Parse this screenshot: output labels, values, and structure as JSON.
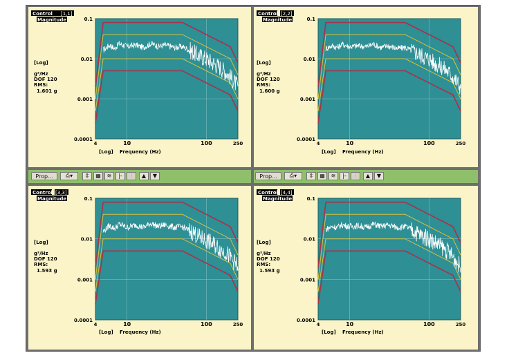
{
  "panels": [
    {
      "id": "1,1",
      "control_label": "Control",
      "id_label": "[1,1]",
      "magnitude_label": "Magnitude",
      "scale_label": "[Log]",
      "units_label": "g²/Hz",
      "dof_label": "DOF 120",
      "rms_label": "RMS:",
      "rms_value": "1.601 g",
      "x_scale_label": "[Log]",
      "xlabel": "Frequency (Hz)"
    },
    {
      "id": "2,2",
      "control_label": "Control",
      "id_label": "[2,2]",
      "magnitude_label": "Magnitude",
      "scale_label": "[Log]",
      "units_label": "g²/Hz",
      "dof_label": "DOF 120",
      "rms_label": "RMS:",
      "rms_value": "1.600 g",
      "x_scale_label": "[Log]",
      "xlabel": "Frequency (Hz)"
    },
    {
      "id": "3,3",
      "control_label": "Control",
      "id_label": "[3,3]",
      "magnitude_label": "Magnitude",
      "scale_label": "[Log]",
      "units_label": "g²/Hz",
      "dof_label": "DOF 120",
      "rms_label": "RMS:",
      "rms_value": "1.593 g",
      "x_scale_label": "[Log]",
      "xlabel": "Frequency (Hz)"
    },
    {
      "id": "4,4",
      "control_label": "Control",
      "id_label": "[4,4]",
      "magnitude_label": "Magnitude",
      "scale_label": "[Log]",
      "units_label": "g²/Hz",
      "dof_label": "DOF 120",
      "rms_label": "RMS:",
      "rms_value": "1.593 g",
      "x_scale_label": "[Log]",
      "xlabel": "Frequency (Hz)"
    }
  ],
  "toolbars": [
    {
      "prop_label": "Prop..."
    },
    {
      "prop_label": "Prop..."
    }
  ],
  "chart_data": [
    {
      "type": "line",
      "title": "",
      "xlabel": "Frequency (Hz)",
      "ylabel": "",
      "xscale": "log",
      "yscale": "log",
      "xlim": [
        4,
        250
      ],
      "ylim": [
        0.0001,
        0.1
      ],
      "xticks": [
        {
          "v": 4,
          "label": "4"
        },
        {
          "v": 10,
          "label": "10"
        },
        {
          "v": 100,
          "label": "100"
        },
        {
          "v": 250,
          "label": "250"
        }
      ],
      "yticks": [
        {
          "v": 0.1,
          "label": "0.1"
        },
        {
          "v": 0.01,
          "label": "0.01"
        },
        {
          "v": 0.001,
          "label": "0.001"
        },
        {
          "v": 0.0001,
          "label": "0.0001"
        }
      ],
      "grid": true,
      "series": [
        {
          "role": "abort-upper",
          "color": "#a8324b",
          "points": [
            [
              4,
              0.002
            ],
            [
              5,
              0.08
            ],
            [
              50,
              0.08
            ],
            [
              200,
              0.02
            ],
            [
              250,
              0.008
            ]
          ]
        },
        {
          "role": "alarm-upper",
          "color": "#d8c23a",
          "points": [
            [
              4,
              0.001
            ],
            [
              5,
              0.04
            ],
            [
              50,
              0.04
            ],
            [
              200,
              0.01
            ],
            [
              250,
              0.004
            ]
          ]
        },
        {
          "role": "alarm-lower",
          "color": "#d8c23a",
          "points": [
            [
              4,
              0.0005
            ],
            [
              5,
              0.01
            ],
            [
              50,
              0.01
            ],
            [
              200,
              0.0025
            ],
            [
              250,
              0.001
            ]
          ]
        },
        {
          "role": "abort-lower",
          "color": "#a8324b",
          "points": [
            [
              4,
              0.00025
            ],
            [
              5,
              0.005
            ],
            [
              50,
              0.005
            ],
            [
              200,
              0.00125
            ],
            [
              250,
              0.0005
            ]
          ]
        },
        {
          "role": "control",
          "color": "#ffffff",
          "points": [
            [
              5,
              0.016
            ],
            [
              6,
              0.022
            ],
            [
              7,
              0.018
            ],
            [
              8,
              0.024
            ],
            [
              10,
              0.02
            ],
            [
              13,
              0.022
            ],
            [
              16,
              0.019
            ],
            [
              20,
              0.024
            ],
            [
              25,
              0.02
            ],
            [
              30,
              0.022
            ],
            [
              40,
              0.019
            ],
            [
              50,
              0.02
            ],
            [
              60,
              0.017
            ],
            [
              70,
              0.014
            ],
            [
              80,
              0.012
            ],
            [
              100,
              0.01
            ],
            [
              120,
              0.008
            ],
            [
              150,
              0.006
            ],
            [
              180,
              0.0045
            ],
            [
              200,
              0.0035
            ],
            [
              220,
              0.0028
            ],
            [
              250,
              0.002
            ]
          ]
        }
      ]
    },
    {
      "type": "line",
      "title": "",
      "xlabel": "Frequency (Hz)",
      "ylabel": "",
      "xscale": "log",
      "yscale": "log",
      "xlim": [
        4,
        250
      ],
      "ylim": [
        0.0001,
        0.1
      ],
      "xticks": [
        {
          "v": 4,
          "label": "4"
        },
        {
          "v": 10,
          "label": "10"
        },
        {
          "v": 100,
          "label": "100"
        },
        {
          "v": 250,
          "label": "250"
        }
      ],
      "yticks": [
        {
          "v": 0.1,
          "label": "0.1"
        },
        {
          "v": 0.01,
          "label": "0.01"
        },
        {
          "v": 0.001,
          "label": "0.001"
        },
        {
          "v": 0.0001,
          "label": "0.0001"
        }
      ],
      "grid": true,
      "series": [
        {
          "role": "abort-upper",
          "color": "#a8324b",
          "points": [
            [
              4,
              0.002
            ],
            [
              5,
              0.08
            ],
            [
              50,
              0.08
            ],
            [
              200,
              0.02
            ],
            [
              250,
              0.008
            ]
          ]
        },
        {
          "role": "alarm-upper",
          "color": "#d8c23a",
          "points": [
            [
              4,
              0.001
            ],
            [
              5,
              0.04
            ],
            [
              50,
              0.04
            ],
            [
              200,
              0.01
            ],
            [
              250,
              0.004
            ]
          ]
        },
        {
          "role": "alarm-lower",
          "color": "#d8c23a",
          "points": [
            [
              4,
              0.0005
            ],
            [
              5,
              0.01
            ],
            [
              50,
              0.01
            ],
            [
              200,
              0.0025
            ],
            [
              250,
              0.001
            ]
          ]
        },
        {
          "role": "abort-lower",
          "color": "#a8324b",
          "points": [
            [
              4,
              0.00025
            ],
            [
              5,
              0.005
            ],
            [
              50,
              0.005
            ],
            [
              200,
              0.00125
            ],
            [
              250,
              0.0005
            ]
          ]
        },
        {
          "role": "control",
          "color": "#ffffff",
          "points": [
            [
              5,
              0.018
            ],
            [
              6,
              0.021
            ],
            [
              7,
              0.019
            ],
            [
              8,
              0.023
            ],
            [
              10,
              0.02
            ],
            [
              13,
              0.021
            ],
            [
              16,
              0.02
            ],
            [
              20,
              0.023
            ],
            [
              25,
              0.019
            ],
            [
              30,
              0.021
            ],
            [
              40,
              0.018
            ],
            [
              50,
              0.019
            ],
            [
              60,
              0.016
            ],
            [
              70,
              0.014
            ],
            [
              80,
              0.012
            ],
            [
              100,
              0.01
            ],
            [
              120,
              0.0075
            ],
            [
              150,
              0.006
            ],
            [
              180,
              0.0045
            ],
            [
              200,
              0.0035
            ],
            [
              220,
              0.0028
            ],
            [
              250,
              0.002
            ]
          ]
        }
      ]
    },
    {
      "type": "line",
      "title": "",
      "xlabel": "Frequency (Hz)",
      "ylabel": "",
      "xscale": "log",
      "yscale": "log",
      "xlim": [
        4,
        250
      ],
      "ylim": [
        0.0001,
        0.1
      ],
      "xticks": [
        {
          "v": 4,
          "label": "4"
        },
        {
          "v": 10,
          "label": "10"
        },
        {
          "v": 100,
          "label": "100"
        },
        {
          "v": 250,
          "label": "250"
        }
      ],
      "yticks": [
        {
          "v": 0.1,
          "label": "0.1"
        },
        {
          "v": 0.01,
          "label": "0.01"
        },
        {
          "v": 0.001,
          "label": "0.001"
        },
        {
          "v": 0.0001,
          "label": "0.0001"
        }
      ],
      "grid": true,
      "series": [
        {
          "role": "abort-upper",
          "color": "#a8324b",
          "points": [
            [
              4,
              0.002
            ],
            [
              5,
              0.08
            ],
            [
              50,
              0.08
            ],
            [
              200,
              0.02
            ],
            [
              250,
              0.008
            ]
          ]
        },
        {
          "role": "alarm-upper",
          "color": "#d8c23a",
          "points": [
            [
              4,
              0.001
            ],
            [
              5,
              0.04
            ],
            [
              50,
              0.04
            ],
            [
              200,
              0.01
            ],
            [
              250,
              0.004
            ]
          ]
        },
        {
          "role": "alarm-lower",
          "color": "#d8c23a",
          "points": [
            [
              4,
              0.0005
            ],
            [
              5,
              0.01
            ],
            [
              50,
              0.01
            ],
            [
              200,
              0.0025
            ],
            [
              250,
              0.001
            ]
          ]
        },
        {
          "role": "abort-lower",
          "color": "#a8324b",
          "points": [
            [
              4,
              0.00025
            ],
            [
              5,
              0.005
            ],
            [
              50,
              0.005
            ],
            [
              200,
              0.00125
            ],
            [
              250,
              0.0005
            ]
          ]
        },
        {
          "role": "control",
          "color": "#ffffff",
          "points": [
            [
              5,
              0.015
            ],
            [
              6,
              0.021
            ],
            [
              7,
              0.018
            ],
            [
              8,
              0.023
            ],
            [
              10,
              0.019
            ],
            [
              13,
              0.022
            ],
            [
              16,
              0.019
            ],
            [
              20,
              0.024
            ],
            [
              25,
              0.02
            ],
            [
              30,
              0.022
            ],
            [
              40,
              0.019
            ],
            [
              50,
              0.02
            ],
            [
              60,
              0.016
            ],
            [
              70,
              0.014
            ],
            [
              80,
              0.011
            ],
            [
              100,
              0.009
            ],
            [
              120,
              0.0075
            ],
            [
              150,
              0.0055
            ],
            [
              180,
              0.0045
            ],
            [
              200,
              0.0035
            ],
            [
              220,
              0.0028
            ],
            [
              250,
              0.002
            ]
          ]
        }
      ]
    },
    {
      "type": "line",
      "title": "",
      "xlabel": "Frequency (Hz)",
      "ylabel": "",
      "xscale": "log",
      "yscale": "log",
      "xlim": [
        4,
        250
      ],
      "ylim": [
        0.0001,
        0.1
      ],
      "xticks": [
        {
          "v": 4,
          "label": "4"
        },
        {
          "v": 10,
          "label": "10"
        },
        {
          "v": 100,
          "label": "100"
        },
        {
          "v": 250,
          "label": "250"
        }
      ],
      "yticks": [
        {
          "v": 0.1,
          "label": "0.1"
        },
        {
          "v": 0.01,
          "label": "0.01"
        },
        {
          "v": 0.001,
          "label": "0.001"
        },
        {
          "v": 0.0001,
          "label": "0.0001"
        }
      ],
      "grid": true,
      "series": [
        {
          "role": "abort-upper",
          "color": "#a8324b",
          "points": [
            [
              4,
              0.002
            ],
            [
              5,
              0.08
            ],
            [
              50,
              0.08
            ],
            [
              200,
              0.02
            ],
            [
              250,
              0.008
            ]
          ]
        },
        {
          "role": "alarm-upper",
          "color": "#d8c23a",
          "points": [
            [
              4,
              0.001
            ],
            [
              5,
              0.04
            ],
            [
              50,
              0.04
            ],
            [
              200,
              0.01
            ],
            [
              250,
              0.004
            ]
          ]
        },
        {
          "role": "alarm-lower",
          "color": "#d8c23a",
          "points": [
            [
              4,
              0.0005
            ],
            [
              5,
              0.01
            ],
            [
              50,
              0.01
            ],
            [
              200,
              0.0025
            ],
            [
              250,
              0.001
            ]
          ]
        },
        {
          "role": "abort-lower",
          "color": "#a8324b",
          "points": [
            [
              4,
              0.00025
            ],
            [
              5,
              0.005
            ],
            [
              50,
              0.005
            ],
            [
              200,
              0.00125
            ],
            [
              250,
              0.0005
            ]
          ]
        },
        {
          "role": "control",
          "color": "#ffffff",
          "points": [
            [
              5,
              0.017
            ],
            [
              6,
              0.02
            ],
            [
              7,
              0.019
            ],
            [
              8,
              0.022
            ],
            [
              10,
              0.02
            ],
            [
              13,
              0.021
            ],
            [
              16,
              0.019
            ],
            [
              20,
              0.023
            ],
            [
              25,
              0.02
            ],
            [
              30,
              0.022
            ],
            [
              40,
              0.019
            ],
            [
              50,
              0.02
            ],
            [
              60,
              0.017
            ],
            [
              70,
              0.014
            ],
            [
              80,
              0.012
            ],
            [
              100,
              0.01
            ],
            [
              120,
              0.008
            ],
            [
              150,
              0.006
            ],
            [
              180,
              0.0045
            ],
            [
              200,
              0.0036
            ],
            [
              220,
              0.0028
            ],
            [
              250,
              0.002
            ]
          ]
        }
      ]
    }
  ],
  "colors": {
    "plot_bg": "#2e8f94",
    "panel_bg": "#fbf4c8",
    "toolbar_bg": "#8fbf6a",
    "abort": "#a8324b",
    "alarm": "#d8c23a",
    "trace": "#ffffff"
  }
}
